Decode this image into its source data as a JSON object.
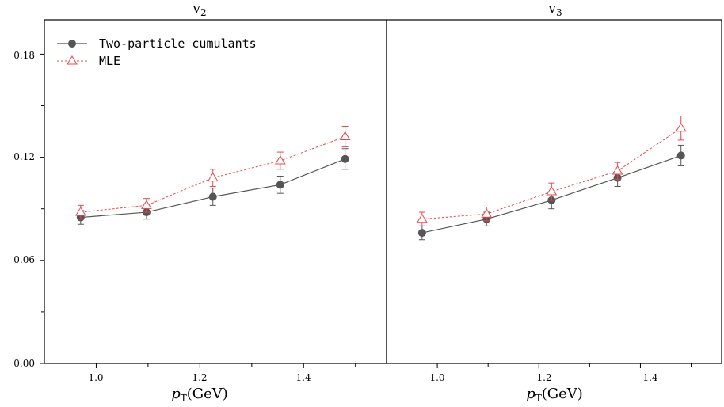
{
  "chart_data": {
    "type": "line",
    "ylim": [
      0,
      0.2
    ],
    "yticks": [
      "0.00",
      "0.06",
      "0.12",
      "0.18"
    ],
    "xticks": [
      "1.0",
      "1.2",
      "1.4"
    ],
    "xlim": [
      0.9,
      1.56
    ],
    "xlabel_main": "p",
    "xlabel_sub": "T",
    "xlabel_unit": "(GeV)",
    "legend": {
      "placement": "top-left",
      "entries": [
        "Two-particle cumulants",
        "MLE"
      ]
    },
    "series_styles": [
      {
        "color": "#555555",
        "marker": "circle",
        "dash": "solid"
      },
      {
        "color": "#e8474c",
        "marker": "triangle-open",
        "dash": "dashed"
      }
    ],
    "panels": [
      {
        "title_main": "v",
        "title_sub": "2",
        "series": [
          {
            "name": "Two-particle cumulants",
            "x": [
              0.97,
              1.097,
              1.225,
              1.355,
              1.48
            ],
            "values": [
              0.085,
              0.088,
              0.097,
              0.104,
              0.119
            ],
            "errors": [
              0.004,
              0.004,
              0.005,
              0.005,
              0.006
            ]
          },
          {
            "name": "MLE",
            "x": [
              0.97,
              1.097,
              1.225,
              1.355,
              1.48
            ],
            "values": [
              0.088,
              0.092,
              0.108,
              0.118,
              0.132
            ],
            "errors": [
              0.004,
              0.004,
              0.005,
              0.005,
              0.006
            ]
          }
        ]
      },
      {
        "title_main": "v",
        "title_sub": "3",
        "series": [
          {
            "name": "Two-particle cumulants",
            "x": [
              0.97,
              1.097,
              1.225,
              1.355,
              1.48
            ],
            "values": [
              0.076,
              0.084,
              0.095,
              0.108,
              0.121
            ],
            "errors": [
              0.004,
              0.004,
              0.005,
              0.005,
              0.006
            ]
          },
          {
            "name": "MLE",
            "x": [
              0.97,
              1.097,
              1.225,
              1.355,
              1.48
            ],
            "values": [
              0.084,
              0.087,
              0.1,
              0.112,
              0.137
            ],
            "errors": [
              0.004,
              0.004,
              0.005,
              0.005,
              0.007
            ]
          }
        ]
      }
    ]
  }
}
